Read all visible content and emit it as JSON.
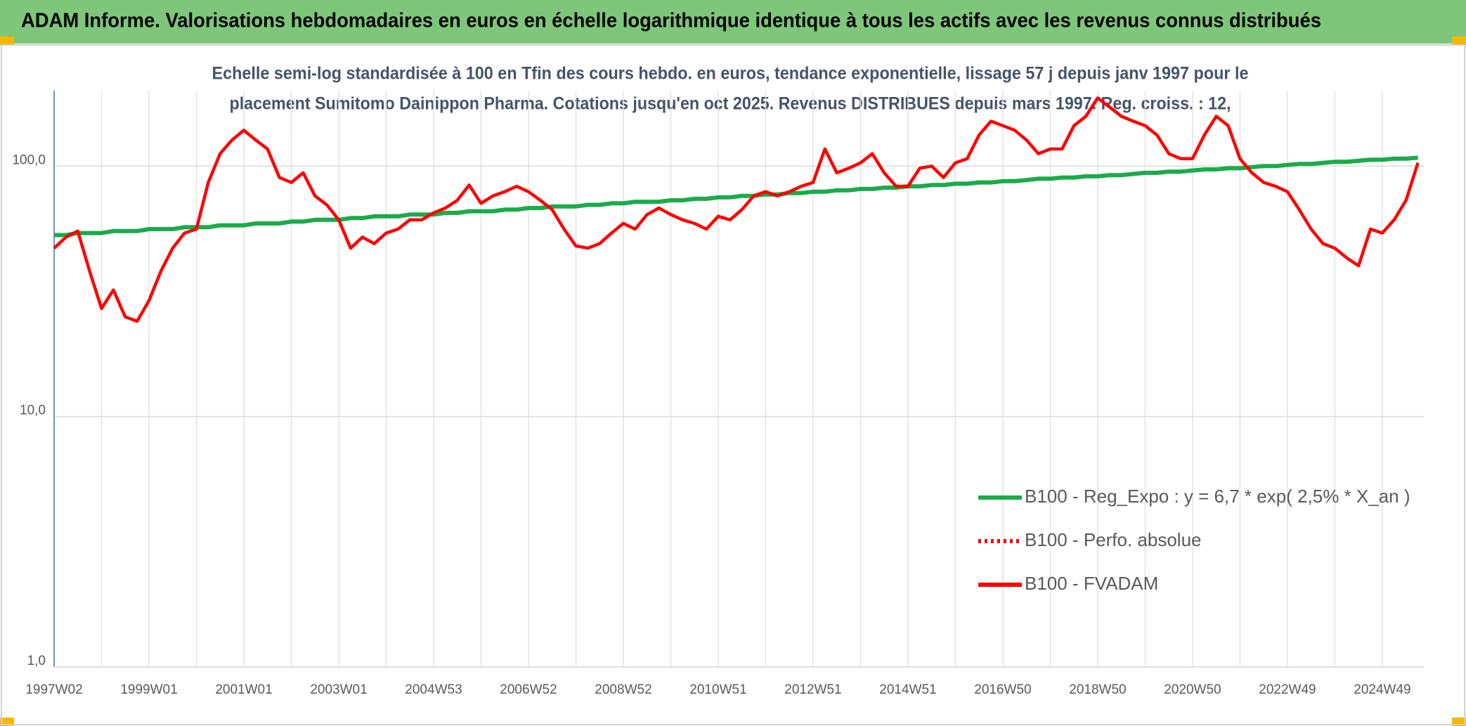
{
  "chart_data": {
    "type": "line",
    "title": "ADAM Informe. Valorisations hebdomadaires en euros en échelle logarithmique identique à tous les actifs avec les revenus connus distribués",
    "subtitle": [
      "Echelle semi-log standardisée à 100 en Tfin des cours hebdo. en euros, tendance exponentielle, lissage 57 j depuis janv 1997 pour le",
      "placement Sumitomo Dainippon Pharma. Cotations jusqu'en oct 2025. Revenus DISTRIBUES depuis mars 1997. Reg. croiss. : 12,"
    ],
    "categories": [
      "1997W02",
      null,
      null,
      null,
      null,
      null,
      null,
      null,
      "1999W01",
      null,
      null,
      null,
      null,
      null,
      null,
      null,
      "2001W01",
      null,
      null,
      null,
      null,
      null,
      null,
      null,
      "2003W01",
      null,
      null,
      null,
      null,
      null,
      null,
      null,
      "2004W53",
      null,
      null,
      null,
      null,
      null,
      null,
      null,
      "2006W52",
      null,
      null,
      null,
      null,
      null,
      null,
      null,
      "2008W52",
      null,
      null,
      null,
      null,
      null,
      null,
      null,
      "2010W51",
      null,
      null,
      null,
      null,
      null,
      null,
      null,
      "2012W51",
      null,
      null,
      null,
      null,
      null,
      null,
      null,
      "2014W51",
      null,
      null,
      null,
      null,
      null,
      null,
      null,
      "2016W50",
      null,
      null,
      null,
      null,
      null,
      null,
      null,
      "2018W50",
      null,
      null,
      null,
      null,
      null,
      null,
      null,
      "2020W50",
      null,
      null,
      null,
      null,
      null,
      null,
      null,
      "2022W49",
      null,
      null,
      null,
      null,
      null,
      null,
      null,
      "2024W49",
      null,
      null,
      null
    ],
    "series": [
      {
        "name": "B100 - Reg_Expo : y = 6,7 * exp( 2,5% *  X_an )",
        "color": "#1aab4b",
        "dash": "solid",
        "values": [
          53,
          53,
          54,
          54,
          54,
          55,
          55,
          55,
          56,
          56,
          56,
          57,
          57,
          57,
          58,
          58,
          58,
          59,
          59,
          59,
          60,
          60,
          61,
          61,
          61,
          62,
          62,
          63,
          63,
          63,
          64,
          64,
          64,
          65,
          65,
          66,
          66,
          66,
          67,
          67,
          68,
          68,
          69,
          69,
          69,
          70,
          70,
          71,
          71,
          72,
          72,
          72,
          73,
          73,
          74,
          74,
          75,
          75,
          76,
          76,
          77,
          77,
          78,
          78,
          79,
          79,
          80,
          80,
          81,
          81,
          82,
          82,
          83,
          83,
          84,
          84,
          85,
          85,
          86,
          86,
          87,
          87,
          88,
          89,
          89,
          90,
          90,
          91,
          91,
          92,
          92,
          93,
          94,
          94,
          95,
          95,
          96,
          97,
          97,
          98,
          98,
          99,
          100,
          100,
          101,
          102,
          102,
          103,
          104,
          104,
          105,
          106,
          106,
          107,
          107,
          108
        ]
      },
      {
        "name": "B100 - Perfo. absolue",
        "color": "#ff0000",
        "dash": "dotted",
        "values": [
          null,
          null,
          null,
          null,
          null,
          null,
          null,
          null,
          null,
          null,
          null,
          null,
          null,
          null,
          null,
          null,
          null,
          null,
          null,
          null,
          null,
          null,
          null,
          null,
          null,
          null,
          null,
          null,
          null,
          null,
          null,
          null,
          null,
          null,
          null,
          null,
          null,
          null,
          null,
          null,
          null,
          null,
          null,
          null,
          null,
          null,
          null,
          null,
          null,
          null,
          null,
          null,
          null,
          null,
          null,
          null,
          null,
          null,
          null,
          null,
          null,
          null,
          null,
          null,
          null,
          null,
          null,
          null,
          null,
          null,
          null,
          null,
          null,
          null,
          null,
          null,
          null,
          null,
          null,
          null,
          null,
          null,
          null,
          null,
          null,
          null,
          null,
          null,
          null,
          null,
          null,
          null,
          null,
          null,
          null,
          null,
          null,
          null,
          null,
          null,
          null,
          null,
          null,
          null,
          null,
          null,
          null,
          null,
          null,
          null,
          null,
          null,
          null,
          null,
          null,
          null
        ]
      },
      {
        "name": "B100 - FVADAM",
        "color": "#ff0000",
        "dash": "solid",
        "values": [
          47,
          52,
          55,
          38,
          27,
          32,
          25,
          24,
          29,
          38,
          47,
          54,
          56,
          86,
          112,
          127,
          139,
          127,
          117,
          90,
          86,
          94,
          76,
          70,
          61,
          47,
          52,
          49,
          54,
          56,
          61,
          61,
          65,
          68,
          73,
          84,
          71,
          76,
          79,
          83,
          79,
          73,
          67,
          56,
          48,
          47,
          49,
          54,
          59,
          56,
          64,
          68,
          64,
          61,
          59,
          56,
          63,
          61,
          67,
          76,
          79,
          76,
          79,
          83,
          86,
          117,
          94,
          98,
          103,
          112,
          94,
          83,
          83,
          98,
          100,
          90,
          103,
          107,
          133,
          151,
          145,
          139,
          127,
          112,
          117,
          117,
          145,
          158,
          187,
          172,
          158,
          151,
          145,
          133,
          112,
          107,
          107,
          133,
          158,
          145,
          107,
          94,
          86,
          83,
          79,
          67,
          56,
          49,
          47,
          43,
          40,
          56,
          54,
          61,
          73,
          103
        ]
      }
    ],
    "log_y": true,
    "ylim": [
      1,
      200
    ],
    "yticks": [
      {
        "value": 1,
        "label": "1,0"
      },
      {
        "value": 10,
        "label": "10,0"
      },
      {
        "value": 100,
        "label": "100,0"
      }
    ],
    "grid": true,
    "legend": "lower right"
  }
}
